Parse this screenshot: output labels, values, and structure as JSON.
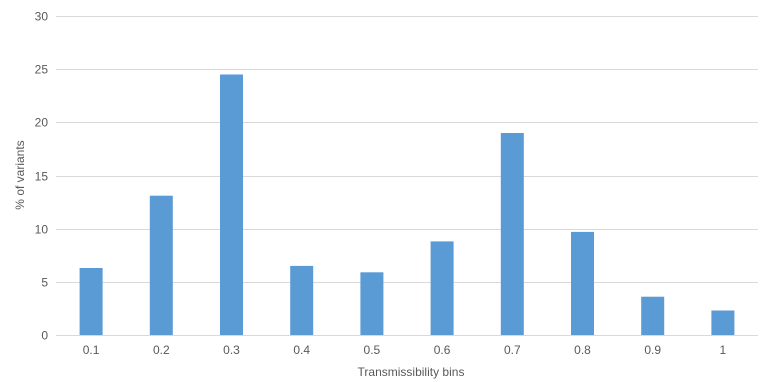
{
  "chart_data": {
    "type": "bar",
    "title": "",
    "xlabel": "Transmissibility bins",
    "ylabel": "% of variants",
    "categories": [
      "0.1",
      "0.2",
      "0.3",
      "0.4",
      "0.5",
      "0.6",
      "0.7",
      "0.8",
      "0.9",
      "1"
    ],
    "values": [
      6.3,
      13.1,
      24.5,
      6.5,
      5.9,
      8.8,
      19.0,
      9.7,
      3.6,
      2.3
    ],
    "ylim": [
      0,
      30
    ],
    "yticks": [
      "0",
      "5",
      "10",
      "15",
      "20",
      "25",
      "30"
    ],
    "grid": true,
    "legend": "none",
    "bar_color": "#5b9bd5"
  }
}
